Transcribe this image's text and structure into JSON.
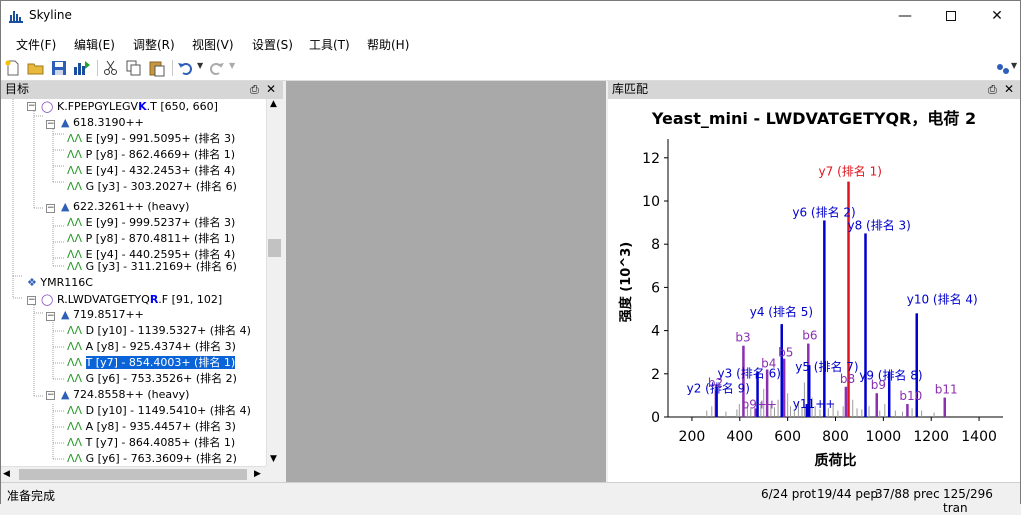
{
  "window": {
    "title": "Skyline"
  },
  "menu": [
    "文件(F)",
    "编辑(E)",
    "调整(R)",
    "视图(V)",
    "设置(S)",
    "工具(T)",
    "帮助(H)"
  ],
  "targets_pane": {
    "title": "目标"
  },
  "library_pane": {
    "title": "库匹配"
  },
  "tree": {
    "peptide1": {
      "seq_pre": "K.FPEPGYLEGV",
      "seq_bold": "K",
      "seq_post": ".T [650, 660]"
    },
    "p1_prec1": "618.3190++",
    "p1_prec1_trans": [
      "E [y9] - 991.5095+ (排名 3)",
      "P [y8] - 862.4669+ (排名 1)",
      "E [y4] - 432.2453+ (排名 4)",
      "G [y3] - 303.2027+ (排名 6)"
    ],
    "p1_prec2": "622.3261++ (heavy)",
    "p1_prec2_trans": [
      "E [y9] - 999.5237+ (排名 3)",
      "P [y8] - 870.4811+ (排名 1)",
      "E [y4] - 440.2595+ (排名 4)",
      "G [y3] - 311.2169+ (排名 6)"
    ],
    "protein2": "YMR116C",
    "peptide2": {
      "seq_pre": "R.LWDVATGETYQ",
      "seq_bold": "R",
      "seq_post": ".F [91, 102]"
    },
    "p2_prec1": "719.8517++",
    "p2_prec1_trans": [
      "D [y10] - 1139.5327+ (排名 4)",
      "A [y8] - 925.4374+ (排名 3)",
      "T [y7] - 854.4003+ (排名 1)",
      "G [y6] - 753.3526+ (排名 2)"
    ],
    "p2_prec2": "724.8558++ (heavy)",
    "p2_prec2_trans": [
      "D [y10] - 1149.5410+ (排名 4)",
      "A [y8] - 935.4457+ (排名 3)",
      "T [y7] - 864.4085+ (排名 1)",
      "G [y6] - 763.3609+ (排名 2)"
    ]
  },
  "status": {
    "left": "准备完成",
    "prot": "6/24 prot",
    "pep": "19/44 pep",
    "prec": "37/88 prec",
    "tran": "125/296 tran"
  },
  "colors": {
    "y_ion": "#0000cc",
    "b_ion": "#8b2fb0",
    "selected": "#e0141e",
    "unmatched": "#9a9a9a"
  },
  "chart_data": {
    "type": "bar",
    "title": "Yeast_mini - LWDVATGETYQR，电荷 2",
    "xlabel": "质荷比",
    "ylabel": "强度 (10^3)",
    "xlim": [
      100,
      1500
    ],
    "ylim": [
      0,
      12.5
    ],
    "xticks": [
      200,
      400,
      600,
      800,
      1000,
      1200,
      1400
    ],
    "yticks": [
      0,
      2,
      4,
      6,
      8,
      10,
      12
    ],
    "peaks": [
      {
        "mz": 854.4,
        "intensity": 10.9,
        "kind": "selected",
        "label": "y7 (排名 1)"
      },
      {
        "mz": 753.4,
        "intensity": 9.1,
        "kind": "y",
        "label": "y6 (排名 2)"
      },
      {
        "mz": 925.4,
        "intensity": 8.5,
        "kind": "y",
        "label": "y8 (排名 3)"
      },
      {
        "mz": 1139.5,
        "intensity": 4.8,
        "kind": "y",
        "label": "y10 (排名 4)"
      },
      {
        "mz": 575.3,
        "intensity": 4.3,
        "kind": "y",
        "label": "y4 (排名 5)"
      },
      {
        "mz": 303.2,
        "intensity": 1.5,
        "kind": "y",
        "label": "y2 (排名 9)"
      },
      {
        "mz": 474.2,
        "intensity": 2.1,
        "kind": "y",
        "label": "y3 (排名 6)"
      },
      {
        "mz": 690.3,
        "intensity": 2.4,
        "kind": "y",
        "label": "y5 (排名 7)"
      },
      {
        "mz": 1024.5,
        "intensity": 2.1,
        "kind": "y",
        "label": "y9 (排名 8)"
      },
      {
        "mz": 300.2,
        "intensity": 1.2,
        "kind": "b",
        "label": "b2"
      },
      {
        "mz": 415.2,
        "intensity": 3.3,
        "kind": "b",
        "label": "b3"
      },
      {
        "mz": 514.3,
        "intensity": 2.2,
        "kind": "b",
        "label": "b4"
      },
      {
        "mz": 585.3,
        "intensity": 2.7,
        "kind": "b",
        "label": "b5"
      },
      {
        "mz": 686.3,
        "intensity": 3.4,
        "kind": "b",
        "label": "b6"
      },
      {
        "mz": 843.4,
        "intensity": 1.4,
        "kind": "b",
        "label": "b8"
      },
      {
        "mz": 972.4,
        "intensity": 1.1,
        "kind": "b",
        "label": "b9"
      },
      {
        "mz": 1100.5,
        "intensity": 0.6,
        "kind": "b",
        "label": "b10"
      },
      {
        "mz": 1256.6,
        "intensity": 0.9,
        "kind": "b",
        "label": "b11"
      },
      {
        "mz": 466.0,
        "intensity": 0.4,
        "kind": "b",
        "label": "b9++"
      },
      {
        "mz": 680.0,
        "intensity": 0.6,
        "kind": "y",
        "label": "y11++"
      },
      {
        "mz": 262,
        "intensity": 0.3,
        "kind": "u"
      },
      {
        "mz": 283,
        "intensity": 0.5,
        "kind": "u"
      },
      {
        "mz": 342,
        "intensity": 0.25,
        "kind": "u"
      },
      {
        "mz": 388,
        "intensity": 0.35,
        "kind": "u"
      },
      {
        "mz": 398,
        "intensity": 0.6,
        "kind": "u"
      },
      {
        "mz": 432,
        "intensity": 0.5,
        "kind": "u"
      },
      {
        "mz": 446,
        "intensity": 0.4,
        "kind": "u"
      },
      {
        "mz": 488,
        "intensity": 0.7,
        "kind": "u"
      },
      {
        "mz": 500,
        "intensity": 1.3,
        "kind": "u"
      },
      {
        "mz": 530,
        "intensity": 0.6,
        "kind": "u"
      },
      {
        "mz": 545,
        "intensity": 0.45,
        "kind": "u"
      },
      {
        "mz": 560,
        "intensity": 0.8,
        "kind": "u"
      },
      {
        "mz": 600,
        "intensity": 1.1,
        "kind": "u"
      },
      {
        "mz": 612,
        "intensity": 0.5,
        "kind": "u"
      },
      {
        "mz": 628,
        "intensity": 0.3,
        "kind": "u"
      },
      {
        "mz": 645,
        "intensity": 0.7,
        "kind": "u"
      },
      {
        "mz": 660,
        "intensity": 0.45,
        "kind": "u"
      },
      {
        "mz": 670,
        "intensity": 1.6,
        "kind": "u"
      },
      {
        "mz": 702,
        "intensity": 0.9,
        "kind": "u"
      },
      {
        "mz": 715,
        "intensity": 0.5,
        "kind": "u"
      },
      {
        "mz": 735,
        "intensity": 0.35,
        "kind": "u"
      },
      {
        "mz": 770,
        "intensity": 0.4,
        "kind": "u"
      },
      {
        "mz": 790,
        "intensity": 0.6,
        "kind": "u"
      },
      {
        "mz": 810,
        "intensity": 0.3,
        "kind": "u"
      },
      {
        "mz": 832,
        "intensity": 0.5,
        "kind": "u"
      },
      {
        "mz": 872,
        "intensity": 0.8,
        "kind": "u"
      },
      {
        "mz": 890,
        "intensity": 0.4,
        "kind": "u"
      },
      {
        "mz": 910,
        "intensity": 0.35,
        "kind": "u"
      },
      {
        "mz": 940,
        "intensity": 0.5,
        "kind": "u"
      },
      {
        "mz": 985,
        "intensity": 0.3,
        "kind": "u"
      },
      {
        "mz": 1006,
        "intensity": 0.6,
        "kind": "u"
      },
      {
        "mz": 1050,
        "intensity": 0.3,
        "kind": "u"
      },
      {
        "mz": 1080,
        "intensity": 0.25,
        "kind": "u"
      },
      {
        "mz": 1120,
        "intensity": 0.4,
        "kind": "u"
      },
      {
        "mz": 1160,
        "intensity": 0.3,
        "kind": "u"
      },
      {
        "mz": 1212,
        "intensity": 0.2,
        "kind": "u"
      }
    ]
  }
}
